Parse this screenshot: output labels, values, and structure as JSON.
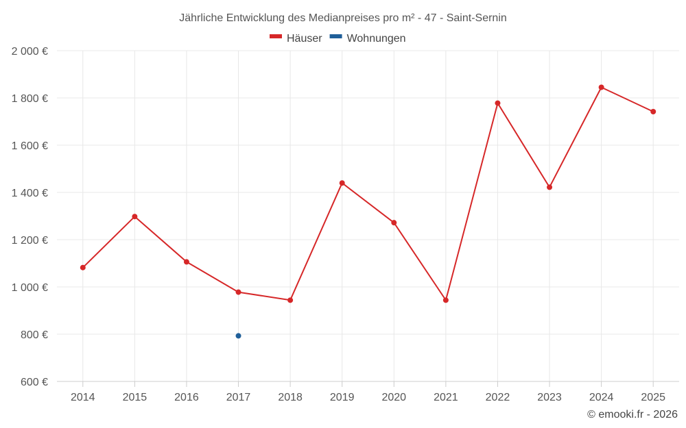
{
  "chart_data": {
    "type": "line",
    "title": "Jährliche Entwicklung des Medianpreises pro m² - 47 - Saint-Sernin",
    "categories": [
      "2014",
      "2015",
      "2016",
      "2017",
      "2018",
      "2019",
      "2020",
      "2021",
      "2022",
      "2023",
      "2024",
      "2025"
    ],
    "series": [
      {
        "name": "Häuser",
        "color": "#d62728",
        "values": [
          1082,
          1298,
          1106,
          978,
          944,
          1440,
          1272,
          944,
          1778,
          1422,
          1845,
          1742
        ]
      },
      {
        "name": "Wohnungen",
        "color": "#1f5f99",
        "values": [
          null,
          null,
          null,
          793,
          null,
          null,
          null,
          null,
          null,
          null,
          null,
          null
        ]
      }
    ],
    "ylim": [
      600,
      2000
    ],
    "yticks": [
      600,
      800,
      1000,
      1200,
      1400,
      1600,
      1800,
      2000
    ],
    "ytick_labels": [
      "600 €",
      "800 €",
      "1 000 €",
      "1 200 €",
      "1 400 €",
      "1 600 €",
      "1 800 €",
      "2 000 €"
    ],
    "xlabel": "",
    "ylabel": "",
    "grid": true,
    "legend_position": "top-center"
  },
  "credit": "© emooki.fr - 2026"
}
